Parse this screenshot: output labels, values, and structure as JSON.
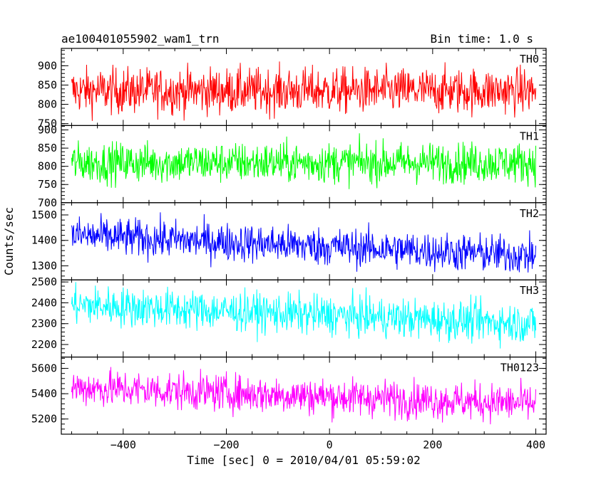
{
  "chart_data": {
    "type": "line",
    "title": "ae100401055902_wam1_trn",
    "subtitle": "Bin time: 1.0 s",
    "xlabel": "Time [sec] 0 = 2010/04/01 05:59:02",
    "ylabel": "Counts/sec",
    "xlim": [
      -520,
      420
    ],
    "x_ticks": [
      -400,
      -200,
      0,
      200,
      400
    ],
    "x_tick_labels": [
      "−400",
      "−200",
      "0",
      "200",
      "400"
    ],
    "x_range": [
      -500,
      400
    ],
    "bin_time": 1.0,
    "grid": false,
    "panels": [
      {
        "name": "TH0",
        "color": "#ff0000",
        "ylim": [
          745,
          945
        ],
        "ticks": [
          750,
          800,
          850,
          900
        ],
        "tick_labels": [
          "750",
          "800",
          "850",
          "900"
        ],
        "mean_start": 835,
        "mean_end": 835,
        "noise": 30
      },
      {
        "name": "TH1",
        "color": "#00ff00",
        "ylim": [
          700,
          912
        ],
        "ticks": [
          700,
          750,
          800,
          850,
          900
        ],
        "tick_labels": [
          "700",
          "750",
          "800",
          "850",
          "900"
        ],
        "mean_start": 810,
        "mean_end": 810,
        "noise": 28
      },
      {
        "name": "TH2",
        "color": "#0000ff",
        "ylim": [
          1245,
          1548
        ],
        "ticks": [
          1300,
          1400,
          1500
        ],
        "tick_labels": [
          "1300",
          "1400",
          "1500"
        ],
        "mean_start": 1420,
        "mean_end": 1340,
        "noise": 38
      },
      {
        "name": "TH3",
        "color": "#00ffff",
        "ylim": [
          2140,
          2510
        ],
        "ticks": [
          2200,
          2300,
          2400,
          2500
        ],
        "tick_labels": [
          "2200",
          "2300",
          "2400",
          "2500"
        ],
        "mean_start": 2390,
        "mean_end": 2300,
        "noise": 48
      },
      {
        "name": "TH0123",
        "color": "#ff00ff",
        "ylim": [
          5080,
          5690
        ],
        "ticks": [
          5200,
          5400,
          5600
        ],
        "tick_labels": [
          "5200",
          "5400",
          "5600"
        ],
        "mean_start": 5450,
        "mean_end": 5320,
        "noise": 75
      }
    ]
  }
}
